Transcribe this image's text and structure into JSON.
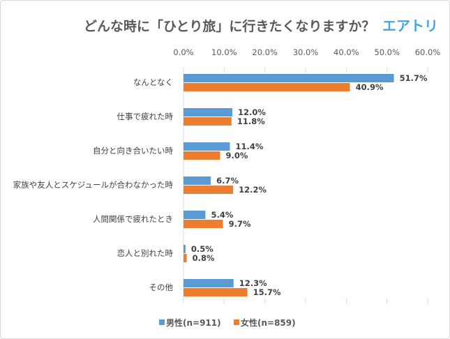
{
  "chart_data": {
    "type": "bar",
    "orientation": "horizontal",
    "title": "どんな時に「ひとり旅」に行きたくなりますか？",
    "logo_text": "エアトリ",
    "categories": [
      "なんとなく",
      "仕事で疲れた時",
      "自分と向き合いたい時",
      "家族や友人とスケジュールが合わなかった時",
      "人間関係で疲れたとき",
      "恋人と別れた時",
      "その他"
    ],
    "series": [
      {
        "name": "男性(n=911)",
        "color": "#5b9bd5",
        "values": [
          51.7,
          12.0,
          11.4,
          6.7,
          5.4,
          0.5,
          12.3
        ]
      },
      {
        "name": "女性(n=859)",
        "color": "#ed7d31",
        "values": [
          40.9,
          11.8,
          9.0,
          12.2,
          9.7,
          0.8,
          15.7
        ]
      }
    ],
    "xlim": [
      0,
      60
    ],
    "xticks": [
      "0.0%",
      "10.0%",
      "20.0%",
      "30.0%",
      "40.0%",
      "50.0%",
      "60.0%"
    ],
    "axis_position": "top",
    "legend_position": "bottom",
    "grid": false
  }
}
